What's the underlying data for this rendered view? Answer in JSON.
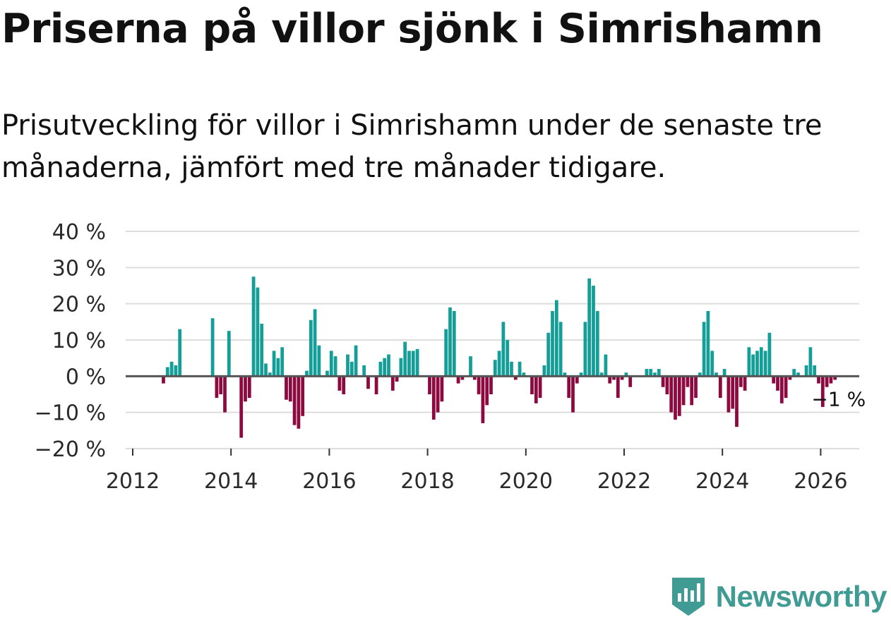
{
  "title": "Priserna på villor sjönk i Simrishamn",
  "subtitle": "Prisutveckling för villor i Simrishamn under de senaste tre månaderna, jämfört med tre månader tidigare.",
  "brand": {
    "name": "Newsworthy",
    "icon": "newsworthy-logo-icon"
  },
  "colors": {
    "positive": "#139e98",
    "negative": "#8c0a40",
    "zero_line": "#555555",
    "grid": "#dddddd",
    "brand": "#3f9b93"
  },
  "chart_data": {
    "type": "bar",
    "title": "Priserna på villor sjönk i Simrishamn",
    "xlabel": "",
    "ylabel": "",
    "x_start": "2012-01",
    "frequency": "monthly",
    "x_ticks": [
      "2012",
      "2014",
      "2016",
      "2018",
      "2020",
      "2022",
      "2024",
      "2026"
    ],
    "y_ticks": [
      {
        "value": 40,
        "label": "40 %"
      },
      {
        "value": 30,
        "label": "30 %"
      },
      {
        "value": 20,
        "label": "20 %"
      },
      {
        "value": 10,
        "label": "10 %"
      },
      {
        "value": 0,
        "label": "0 %"
      },
      {
        "value": -10,
        "label": "−10 %"
      },
      {
        "value": -20,
        "label": "−20 %"
      }
    ],
    "ylim": [
      -20,
      40
    ],
    "xlim": [
      2012,
      2027
    ],
    "grid": true,
    "annotation": {
      "label": "−1 %",
      "value": -1
    },
    "values": [
      null,
      null,
      null,
      null,
      null,
      null,
      null,
      -2,
      2.5,
      4,
      3,
      13,
      null,
      null,
      null,
      null,
      null,
      null,
      null,
      16,
      -6,
      -5,
      -10,
      12.5,
      null,
      null,
      -17,
      -7,
      -6,
      27.5,
      24.5,
      14.5,
      3.5,
      1,
      7,
      5,
      8,
      -6.5,
      -7,
      -13.5,
      -14.5,
      -11,
      1.5,
      15.5,
      18.5,
      8.5,
      null,
      1.5,
      7,
      5.5,
      -4,
      -5,
      6,
      4,
      8.5,
      null,
      3,
      -3.5,
      null,
      -5,
      4,
      5,
      6,
      -4,
      -1.5,
      5,
      9.5,
      7,
      7,
      7.5,
      null,
      null,
      -5,
      -12,
      -10,
      -7,
      13,
      19,
      18,
      -2,
      -1,
      null,
      5.5,
      -1,
      -5,
      -13,
      -8,
      -5,
      4.5,
      7,
      15,
      10,
      4,
      -1,
      4,
      1,
      null,
      -5,
      -7.5,
      -6,
      3,
      12,
      18,
      21,
      15,
      1,
      -6,
      -10,
      -2,
      1,
      15,
      27,
      25,
      18,
      1,
      6,
      -2,
      -1,
      -6,
      -1,
      1,
      -3,
      null,
      null,
      null,
      2,
      2,
      1,
      2,
      -3,
      -5,
      -10,
      -12,
      -11,
      -8,
      -3,
      -8,
      -6,
      1,
      15,
      18,
      7,
      1,
      -6,
      2,
      -10,
      -9,
      -14,
      -3,
      -4,
      8,
      6,
      7,
      8,
      7,
      12,
      -2,
      -4,
      -7.5,
      -6,
      -1,
      2,
      1,
      null,
      3,
      8,
      3,
      -2,
      -8.5,
      -3,
      -2,
      -1
    ]
  }
}
